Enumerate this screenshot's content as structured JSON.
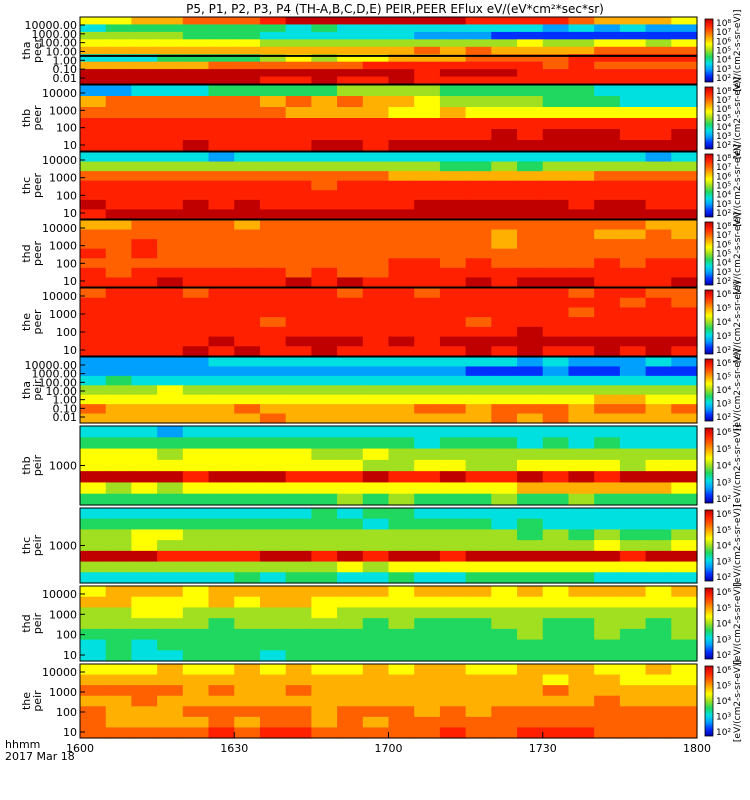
{
  "title": "P5, P1, P2, P3, P4 (TH-A,B,C,D,E) PEIR,PEER EFlux eV/(eV*cm²*sec*sr)",
  "footer": {
    "time_label": "hhmm",
    "date_label": "2017 Mar 18"
  },
  "colorbar_unit": "[eV/(cm2-s-sr-eV)]",
  "palette": [
    "#0000aa",
    "#0030ff",
    "#00a0ff",
    "#00e0e0",
    "#20d860",
    "#a0e020",
    "#ffff00",
    "#ffb000",
    "#ff6000",
    "#ff2000",
    "#c00000"
  ],
  "chart_data": [
    {
      "type": "heatmap",
      "probe": "tha",
      "species": "peer",
      "ylabel_lines": [
        "tha",
        "peer"
      ],
      "yticks": [
        "10000.00",
        "1000.00",
        "100.00",
        "10.00",
        "1.00",
        "0.10",
        "0.01"
      ],
      "ylim": [
        0.01,
        30000
      ],
      "yscale": "log",
      "colorbar_ticks": [
        "10⁸",
        "10⁷",
        "10⁶",
        "10⁵",
        "10⁴",
        "10³",
        "10²"
      ],
      "bands": [
        [
          0.15,
          1.0
        ],
        [
          0.2,
          0.38
        ],
        [
          0.1,
          0.55
        ],
        [
          0.5,
          0.74
        ],
        [
          0.7,
          0.82
        ],
        [
          0.3,
          0.88
        ],
        [
          0.5,
          0.9
        ],
        [
          0.88,
          0.98
        ],
        [
          0.88,
          1.0
        ]
      ],
      "trace_level": 0.58
    },
    {
      "type": "heatmap",
      "probe": "thb",
      "species": "peer",
      "ylabel_lines": [
        "thb",
        "peer"
      ],
      "yticks": [
        "10000",
        "1000",
        "100",
        "10"
      ],
      "ylim": [
        5,
        15000
      ],
      "yscale": "log",
      "colorbar_ticks": [
        "10⁸",
        "10⁷",
        "10⁶",
        "10⁵",
        "10⁴",
        "10³",
        "10²"
      ],
      "bands": [
        [
          0.0,
          0.45
        ],
        [
          0.2,
          0.8
        ],
        [
          0.6,
          0.86
        ],
        [
          0.9,
          0.93
        ],
        [
          0.9,
          0.98
        ],
        [
          0.9,
          1.0
        ]
      ]
    },
    {
      "type": "heatmap",
      "probe": "thc",
      "species": "peer",
      "ylabel_lines": [
        "thc",
        "peer"
      ],
      "yticks": [
        "10000",
        "1000",
        "100",
        "10"
      ],
      "ylim": [
        5,
        15000
      ],
      "yscale": "log",
      "colorbar_ticks": [
        "10⁸",
        "10⁷",
        "10⁶",
        "10⁵",
        "10⁴",
        "10³",
        "10²"
      ],
      "bands": [
        [
          0.18,
          0.3
        ],
        [
          0.45,
          0.5
        ],
        [
          0.75,
          0.8
        ],
        [
          0.88,
          0.9
        ],
        [
          0.9,
          0.95
        ],
        [
          0.92,
          0.98
        ],
        [
          0.9,
          1.0
        ]
      ]
    },
    {
      "type": "heatmap",
      "probe": "thd",
      "species": "peer",
      "ylabel_lines": [
        "thd",
        "peer"
      ],
      "yticks": [
        "10000",
        "1000",
        "100",
        "10"
      ],
      "ylim": [
        5,
        20000
      ],
      "yscale": "log",
      "colorbar_ticks": [
        "10⁸",
        "10⁷",
        "10⁶",
        "10⁵",
        "10⁴",
        "10³",
        "10²"
      ],
      "bands": [
        [
          0.72,
          0.78
        ],
        [
          0.74,
          0.8
        ],
        [
          0.78,
          0.82
        ],
        [
          0.8,
          0.85
        ],
        [
          0.82,
          0.86
        ],
        [
          0.86,
          0.9
        ],
        [
          0.88,
          0.95
        ]
      ]
    },
    {
      "type": "heatmap",
      "probe": "the",
      "species": "peer",
      "ylabel_lines": [
        "the",
        "peer"
      ],
      "yticks": [
        "10000",
        "1000",
        "100",
        "10"
      ],
      "ylim": [
        5,
        20000
      ],
      "yscale": "log",
      "colorbar_ticks": [
        "10⁶",
        "10⁵",
        "10⁴",
        "10³",
        "10²"
      ],
      "bands": [
        [
          0.82,
          0.88
        ],
        [
          0.85,
          0.92
        ],
        [
          0.88,
          0.92
        ],
        [
          0.88,
          0.93
        ],
        [
          0.9,
          0.95
        ],
        [
          0.9,
          1.0
        ],
        [
          0.88,
          0.96
        ]
      ]
    },
    {
      "type": "heatmap",
      "probe": "tha",
      "species": "peir",
      "ylabel_lines": [
        "tha",
        "peir"
      ],
      "yticks": [
        "10000.00",
        "1000.00",
        "100.00",
        "10.00",
        "1.00",
        "0.10",
        "0.01"
      ],
      "ylim": [
        0.01,
        30000
      ],
      "yscale": "log",
      "colorbar_ticks": [
        "10⁶",
        "10⁵",
        "10⁴",
        "10³",
        "10²"
      ],
      "bands": [
        [
          0.2,
          0.25
        ],
        [
          0.1,
          0.2
        ],
        [
          0.3,
          0.35
        ],
        [
          0.5,
          0.55
        ],
        [
          0.6,
          0.66
        ],
        [
          0.72,
          0.76
        ],
        [
          0.68,
          0.74
        ]
      ]
    },
    {
      "type": "heatmap",
      "probe": "thb",
      "species": "peir",
      "ylabel_lines": [
        "thb",
        "peir"
      ],
      "yticks": [
        "1000"
      ],
      "ylim": [
        100,
        10000
      ],
      "yscale": "log",
      "colorbar_ticks": [
        "10⁶",
        "10⁵",
        "10⁴",
        "10³",
        "10²"
      ],
      "bands": [
        [
          0.2,
          0.3
        ],
        [
          0.3,
          0.4
        ],
        [
          0.5,
          0.6
        ],
        [
          0.55,
          0.65
        ],
        [
          0.95,
          1.0
        ],
        [
          0.55,
          0.65
        ],
        [
          0.35,
          0.45
        ]
      ]
    },
    {
      "type": "heatmap",
      "probe": "thc",
      "species": "peir",
      "ylabel_lines": [
        "thc",
        "peir"
      ],
      "yticks": [
        "1000"
      ],
      "ylim": [
        100,
        10000
      ],
      "yscale": "log",
      "colorbar_ticks": [
        "10⁶",
        "10⁵",
        "10⁴",
        "10³",
        "10²"
      ],
      "bands": [
        [
          0.25,
          0.35
        ],
        [
          0.3,
          0.4
        ],
        [
          0.45,
          0.55
        ],
        [
          0.5,
          0.6
        ],
        [
          0.95,
          1.0
        ],
        [
          0.5,
          0.6
        ],
        [
          0.25,
          0.35
        ]
      ]
    },
    {
      "type": "heatmap",
      "probe": "thd",
      "species": "peir",
      "ylabel_lines": [
        "thd",
        "peir"
      ],
      "yticks": [
        "10000",
        "1000",
        "100",
        "10"
      ],
      "ylim": [
        5,
        20000
      ],
      "yscale": "log",
      "colorbar_ticks": [
        "10⁶",
        "10⁵",
        "10⁴",
        "10³",
        "10²"
      ],
      "bands": [
        [
          0.62,
          0.68
        ],
        [
          0.58,
          0.64
        ],
        [
          0.5,
          0.56
        ],
        [
          0.45,
          0.5
        ],
        [
          0.4,
          0.45
        ],
        [
          0.35,
          0.42
        ],
        [
          0.3,
          0.4
        ]
      ]
    },
    {
      "type": "heatmap",
      "probe": "the",
      "species": "peir",
      "ylabel_lines": [
        "the",
        "peir"
      ],
      "yticks": [
        "10000",
        "1000",
        "100",
        "10"
      ],
      "ylim": [
        5,
        20000
      ],
      "yscale": "log",
      "colorbar_ticks": [
        "10⁶",
        "10⁵",
        "10⁴",
        "10³",
        "10²"
      ],
      "bands": [
        [
          0.6,
          0.66
        ],
        [
          0.62,
          0.7
        ],
        [
          0.72,
          0.78
        ],
        [
          0.7,
          0.76
        ],
        [
          0.75,
          0.8
        ],
        [
          0.74,
          0.8
        ],
        [
          0.8,
          0.86
        ]
      ]
    }
  ],
  "x_axis": {
    "ticks": [
      "1600",
      "1630",
      "1700",
      "1730",
      "1800"
    ]
  }
}
